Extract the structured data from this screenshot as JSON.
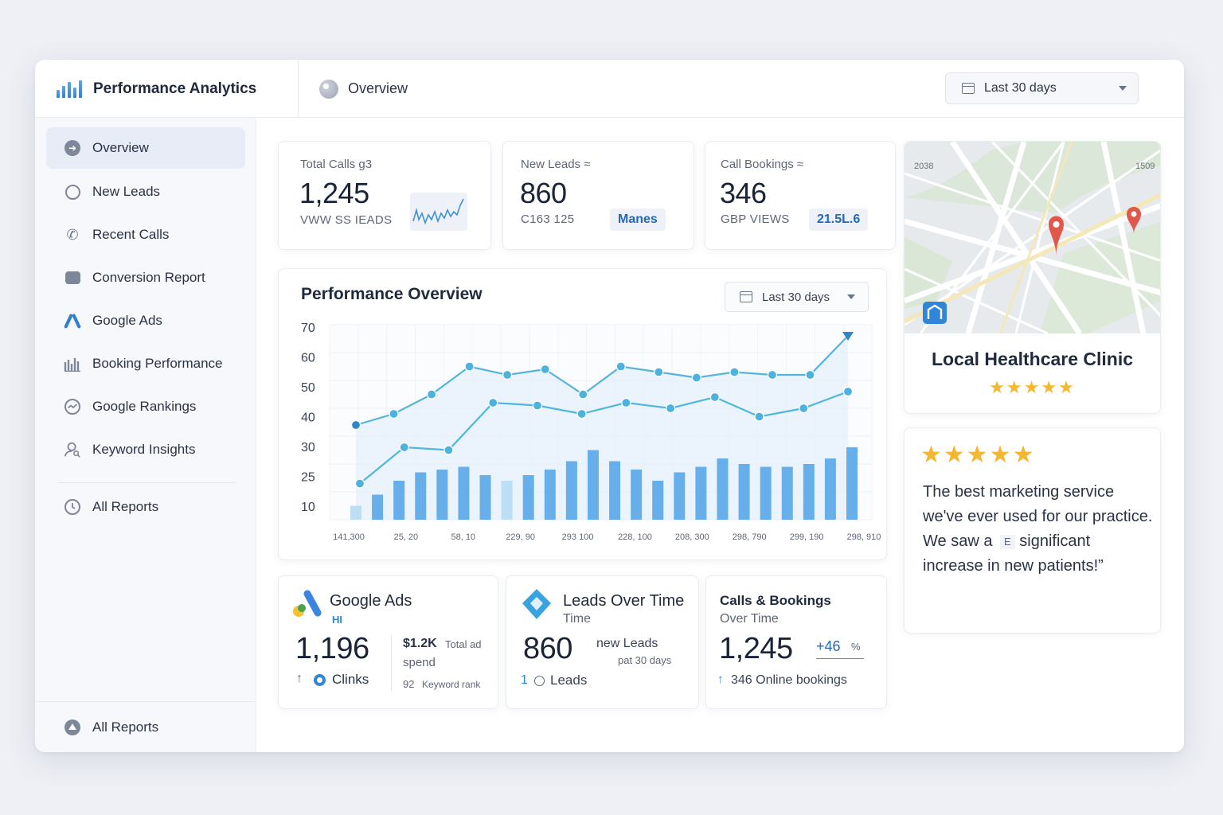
{
  "app": {
    "title": "Performance Analytics",
    "breadcrumb": "Overview",
    "date_range": "Last 30 days"
  },
  "sidebar": {
    "items": [
      {
        "label": "Overview",
        "icon": "arrow-circle-icon",
        "active": true
      },
      {
        "label": "New Leads",
        "icon": "chat-icon"
      },
      {
        "label": "Recent Calls",
        "icon": "phone-icon"
      },
      {
        "label": "Conversion Report",
        "icon": "inbox-icon"
      },
      {
        "label": "Google Ads",
        "icon": "google-ads-icon"
      },
      {
        "label": "Booking Performance",
        "icon": "bar-building-icon"
      },
      {
        "label": "Google Rankings",
        "icon": "trend-circle-icon"
      },
      {
        "label": "Keyword Insights",
        "icon": "user-search-icon"
      }
    ],
    "secondary": {
      "label": "All Reports",
      "icon": "clock-icon"
    },
    "footer": {
      "label": "All Reports",
      "icon": "triangle-circle-icon"
    }
  },
  "kpis": [
    {
      "label": "Total Calls g3",
      "value": "1,245",
      "sub": "VWW SS IEADS"
    },
    {
      "label": "New Leads ≈",
      "value": "860",
      "sub": "C163 125",
      "pill": "Manes"
    },
    {
      "label": "Call Bookings ≈",
      "value": "346",
      "sub": "GBP VIEWS",
      "pill": "21.5L.6"
    }
  ],
  "performance": {
    "title": "Performance Overview",
    "range": "Last 30 days"
  },
  "chart_data": {
    "type": "bar",
    "title": "Performance Overview",
    "y_ticks": [
      "70",
      "60",
      "50",
      "40",
      "30",
      "25",
      "10"
    ],
    "x_ticks": [
      "141,300",
      "25, 20",
      "58, 10",
      "229, 90",
      "293 100",
      "228, 100",
      "208, 300",
      "298, 790",
      "299, 190",
      "298, 910"
    ],
    "bars": [
      5,
      9,
      14,
      17,
      18,
      19,
      16,
      14,
      16,
      18,
      21,
      25,
      21,
      18,
      14,
      17,
      19,
      22,
      20,
      19,
      19,
      20,
      22,
      26
    ],
    "series": [
      {
        "values": [
          34,
          38,
          45,
          55,
          52,
          54,
          45,
          55,
          53,
          51,
          53,
          52,
          52,
          66
        ]
      },
      {
        "values": [
          13,
          26,
          25,
          42,
          41,
          38,
          42,
          40,
          44,
          37,
          40,
          46
        ]
      }
    ],
    "ylim": [
      0,
      70
    ],
    "grid": true,
    "colors": {
      "bar": "#5aa8e8",
      "bar_light": "#b7dcf5",
      "line1": "#56b3db",
      "line2": "#4fb6dc",
      "dot_dark": "#2f86c9"
    }
  },
  "clinic": {
    "name": "Local Healthcare Clinic",
    "rating": 5,
    "map_labels": [
      "2038",
      "1509"
    ]
  },
  "review": {
    "rating": 5,
    "text": "The best marketing service we've ever used for our practice. We saw a",
    "text_flag": "E",
    "text_end": "significant increase in new patients!”"
  },
  "bottom": {
    "google_ads": {
      "title": "Google Ads",
      "tag": "HI",
      "value": "1,196",
      "spend": "$1.2K",
      "spend_label": "Total ad",
      "spend_label2": "spend",
      "clicks": "Clinks",
      "keyword": "92",
      "keyword_label": "Keyword rank"
    },
    "leads": {
      "title": "Leads Over Time",
      "title2": "Time",
      "value": "860",
      "label": "new Leads",
      "sub": "pat 30 days",
      "count": "1",
      "leads": "Leads"
    },
    "calls": {
      "title": "Calls & Bookings",
      "title2": "Over Time",
      "value": "1,245",
      "delta": "+46",
      "pct": "%",
      "bookings": "346 Online bookings"
    }
  },
  "colors": {
    "accent": "#2f7fd6",
    "star": "#f5b731",
    "pin": "#e2574c"
  }
}
